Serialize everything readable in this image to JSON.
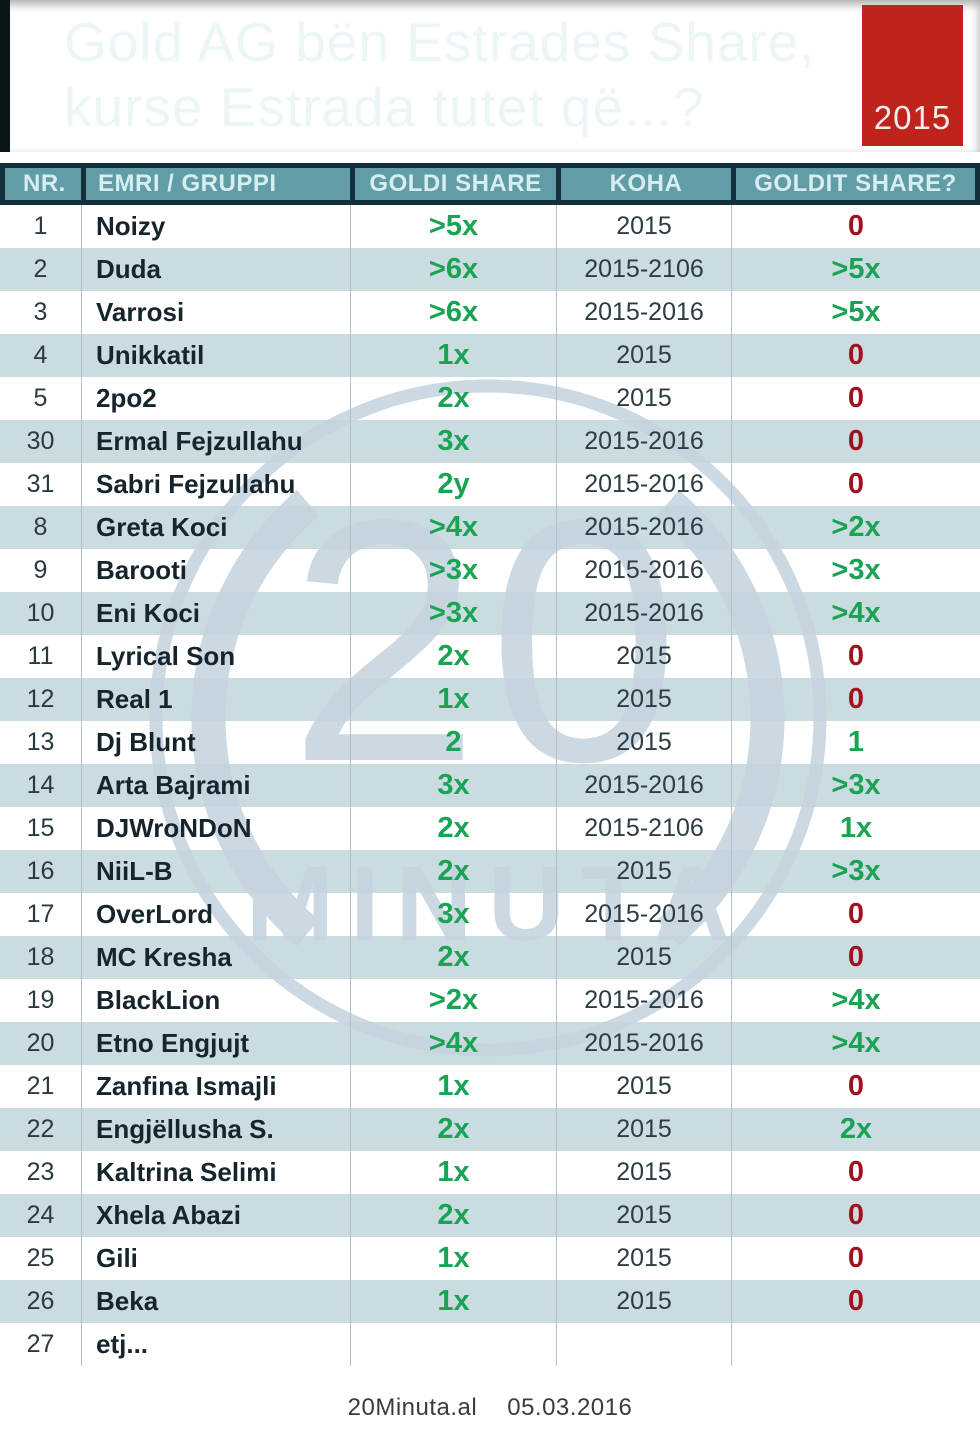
{
  "title": {
    "line1": "Gold AG bën Estrades Share,",
    "line2": "kurse Estrada tutet që...?",
    "year_badge": "2015"
  },
  "table": {
    "columns": [
      "NR.",
      "EMRI / GRUPPI",
      "GOLDI SHARE",
      "KOHA",
      "GOLDIT SHARE?"
    ],
    "rows": [
      {
        "nr": "1",
        "name": "Noizy",
        "goldi": ">5x",
        "koha": "2015",
        "goldit": "0",
        "goldit_color": "red"
      },
      {
        "nr": "2",
        "name": "Duda",
        "goldi": ">6x",
        "koha": "2015-2106",
        "goldit": ">5x",
        "goldit_color": "green"
      },
      {
        "nr": "3",
        "name": "Varrosi",
        "goldi": ">6x",
        "koha": "2015-2016",
        "goldit": ">5x",
        "goldit_color": "green"
      },
      {
        "nr": "4",
        "name": "Unikkatil",
        "goldi": "1x",
        "koha": "2015",
        "goldit": "0",
        "goldit_color": "red"
      },
      {
        "nr": "5",
        "name": "2po2",
        "goldi": "2x",
        "koha": "2015",
        "goldit": "0",
        "goldit_color": "red"
      },
      {
        "nr": "30",
        "name": "Ermal Fejzullahu",
        "goldi": "3x",
        "koha": "2015-2016",
        "goldit": "0",
        "goldit_color": "red"
      },
      {
        "nr": "31",
        "name": "Sabri Fejzullahu",
        "goldi": "2y",
        "koha": "2015-2016",
        "goldit": "0",
        "goldit_color": "red"
      },
      {
        "nr": "8",
        "name": "Greta Koci",
        "goldi": ">4x",
        "koha": "2015-2016",
        "goldit": ">2x",
        "goldit_color": "green"
      },
      {
        "nr": "9",
        "name": "Barooti",
        "goldi": ">3x",
        "koha": "2015-2016",
        "goldit": ">3x",
        "goldit_color": "green"
      },
      {
        "nr": "10",
        "name": "Eni Koci",
        "goldi": ">3x",
        "koha": "2015-2016",
        "goldit": ">4x",
        "goldit_color": "green"
      },
      {
        "nr": "11",
        "name": "Lyrical Son",
        "goldi": "2x",
        "koha": "2015",
        "goldit": "0",
        "goldit_color": "red"
      },
      {
        "nr": "12",
        "name": "Real 1",
        "goldi": "1x",
        "koha": "2015",
        "goldit": "0",
        "goldit_color": "red"
      },
      {
        "nr": "13",
        "name": "Dj Blunt",
        "goldi": "2",
        "koha": "2015",
        "goldit": "1",
        "goldit_color": "green"
      },
      {
        "nr": "14",
        "name": "Arta Bajrami",
        "goldi": "3x",
        "koha": "2015-2016",
        "goldit": ">3x",
        "goldit_color": "green"
      },
      {
        "nr": "15",
        "name": "DJWroNDoN",
        "goldi": "2x",
        "koha": "2015-2106",
        "goldit": "1x",
        "goldit_color": "green"
      },
      {
        "nr": "16",
        "name": "NiiL-B",
        "goldi": "2x",
        "koha": "2015",
        "goldit": ">3x",
        "goldit_color": "green"
      },
      {
        "nr": "17",
        "name": "OverLord",
        "goldi": "3x",
        "koha": "2015-2016",
        "goldit": "0",
        "goldit_color": "red"
      },
      {
        "nr": "18",
        "name": "MC Kresha",
        "goldi": "2x",
        "koha": "2015",
        "goldit": "0",
        "goldit_color": "red"
      },
      {
        "nr": "19",
        "name": "BlackLion",
        "goldi": ">2x",
        "koha": "2015-2016",
        "goldit": ">4x",
        "goldit_color": "green"
      },
      {
        "nr": "20",
        "name": "Etno Engjujt",
        "goldi": ">4x",
        "koha": "2015-2016",
        "goldit": ">4x",
        "goldit_color": "green"
      },
      {
        "nr": "21",
        "name": "Zanfina Ismajli",
        "goldi": "1x",
        "koha": "2015",
        "goldit": "0",
        "goldit_color": "red"
      },
      {
        "nr": "22",
        "name": "Engjëllusha S.",
        "goldi": "2x",
        "koha": "2015",
        "goldit": "2x",
        "goldit_color": "green"
      },
      {
        "nr": "23",
        "name": "Kaltrina Selimi",
        "goldi": "1x",
        "koha": "2015",
        "goldit": "0",
        "goldit_color": "red"
      },
      {
        "nr": "24",
        "name": "Xhela Abazi",
        "goldi": "2x",
        "koha": "2015",
        "goldit": "0",
        "goldit_color": "red"
      },
      {
        "nr": "25",
        "name": "Gili",
        "goldi": "1x",
        "koha": "2015",
        "goldit": "0",
        "goldit_color": "red"
      },
      {
        "nr": "26",
        "name": "Beka",
        "goldi": "1x",
        "koha": "2015",
        "goldit": "0",
        "goldit_color": "red"
      },
      {
        "nr": "27",
        "name": "etj...",
        "goldi": "",
        "koha": "",
        "goldit": "",
        "goldit_color": "green"
      }
    ]
  },
  "watermark": {
    "number": "20",
    "word": "MINUTA"
  },
  "footer": {
    "site": "20Minuta.al",
    "date": "05.03.2016"
  },
  "colors": {
    "green": "#1aa355",
    "red": "#9f121e",
    "header_bg": "#619ca7",
    "header_text": "#d6eef0",
    "header_border": "#14303a",
    "row_alt": "#cbdce0",
    "badge_red": "#bf241c",
    "watermark": "#c4d3de",
    "title_text": "#ecf6f6"
  }
}
